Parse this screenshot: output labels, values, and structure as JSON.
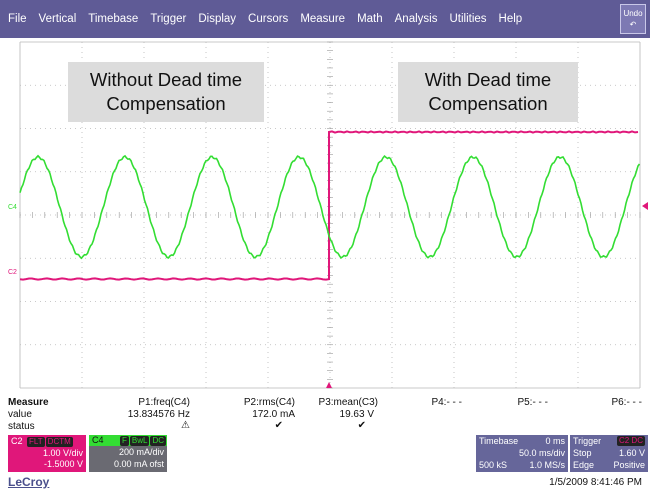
{
  "menu": {
    "items": [
      "File",
      "Vertical",
      "Timebase",
      "Trigger",
      "Display",
      "Cursors",
      "Measure",
      "Math",
      "Analysis",
      "Utilities",
      "Help"
    ],
    "undo_label": "Undo"
  },
  "annotations": {
    "left": [
      "Without Dead time",
      "Compensation"
    ],
    "right": [
      "With Dead time",
      "Compensation"
    ]
  },
  "traces": {
    "c4_marker": "C4",
    "c2_marker": "C2",
    "c4_color": "#33dd33",
    "c2_color": "#e0177a",
    "trigger_color": "#e0177a"
  },
  "measure": {
    "header": "Measure",
    "row_labels": [
      "value",
      "status"
    ],
    "params": [
      {
        "name": "P1:freq(C4)",
        "value": "13.834576 Hz",
        "status": "warn"
      },
      {
        "name": "P2:rms(C4)",
        "value": "172.0 mA",
        "status": "ok"
      },
      {
        "name": "P3:mean(C3)",
        "value": "19.63 V",
        "status": "ok"
      },
      {
        "name": "P4:- - -",
        "value": "",
        "status": ""
      },
      {
        "name": "P5:- - -",
        "value": "",
        "status": ""
      },
      {
        "name": "P6:- - -",
        "value": "",
        "status": ""
      }
    ]
  },
  "channels": {
    "c2": {
      "label": "C2",
      "tags": [
        "FLT",
        "DCTM"
      ],
      "vdiv": "1.00 V/div",
      "offset": "-1.5000 V",
      "color": "#e0177a"
    },
    "c4": {
      "label": "C4",
      "tags": [
        "F",
        "BwL",
        "DC"
      ],
      "vdiv": "200 mA/div",
      "offset": "0.00 mA ofst",
      "color": "#33dd33"
    }
  },
  "timebase": {
    "label": "Timebase",
    "delay": "0 ms",
    "tdiv": "50.0 ms/div",
    "samples": "500 kS",
    "rate": "1.0 MS/s"
  },
  "trigger": {
    "label": "Trigger",
    "tag": "C2 DC",
    "mode": "Stop",
    "level": "1.60 V",
    "type": "Edge",
    "slope": "Positive"
  },
  "footer": {
    "brand": "LeCroy",
    "datetime": "1/5/2009 8:41:46 PM"
  }
}
